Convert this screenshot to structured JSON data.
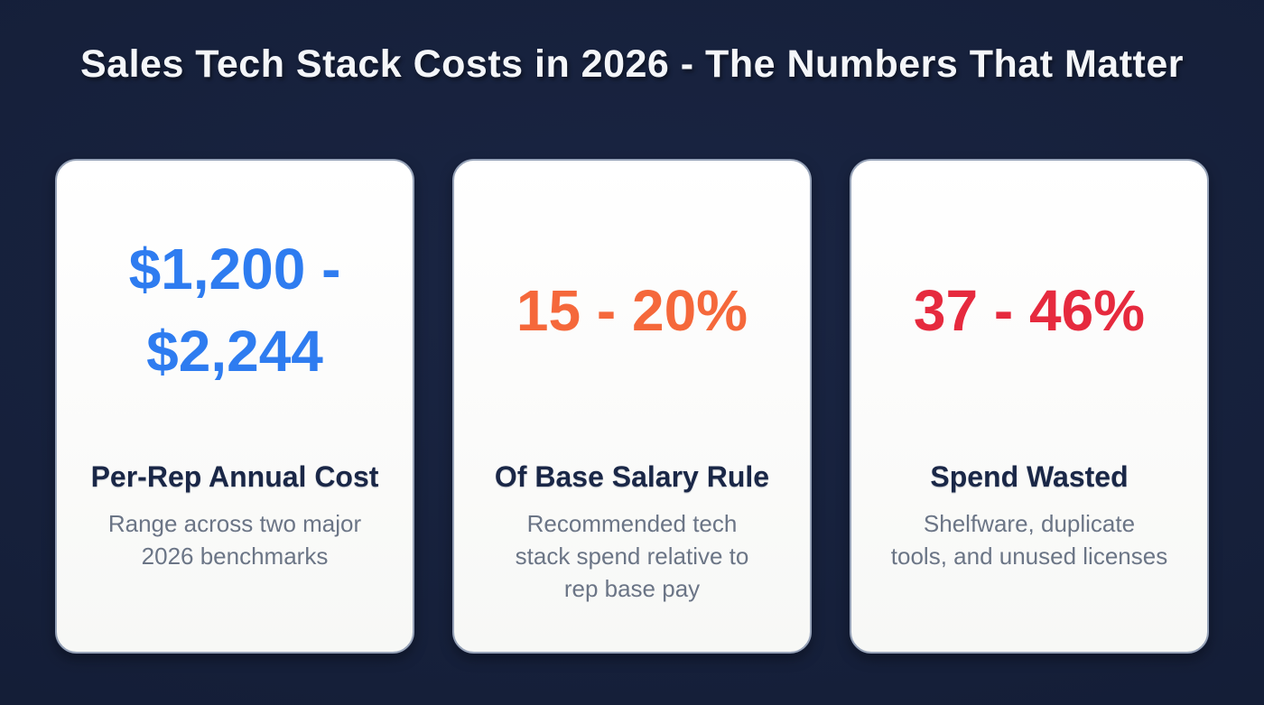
{
  "title": "Sales Tech Stack Costs in 2026 - The Numbers That Matter",
  "colors": {
    "background": "#151f39",
    "card_background": "#fbfbfa",
    "card_border": "#97a3b8",
    "title_text": "#f4f6f9",
    "heading_text": "#1a2747",
    "description_text": "#6b7586",
    "stat_blue": "#2e7cf0",
    "stat_orange": "#f5683b",
    "stat_red": "#e62a3e"
  },
  "cards": [
    {
      "value_lines": [
        "$1,200 -",
        "$2,244"
      ],
      "accent_color": "#2e7cf0",
      "heading": "Per-Rep Annual Cost",
      "description_lines": [
        "Range across two major",
        "2026 benchmarks"
      ]
    },
    {
      "value_lines": [
        "15 - 20%"
      ],
      "accent_color": "#f5683b",
      "heading": "Of Base Salary Rule",
      "description_lines": [
        "Recommended tech",
        "stack spend relative to",
        "rep base pay"
      ]
    },
    {
      "value_lines": [
        "37 - 46%"
      ],
      "accent_color": "#e62a3e",
      "heading": "Spend Wasted",
      "description_lines": [
        "Shelfware, duplicate",
        "tools, and unused licenses"
      ]
    }
  ],
  "chart_data": {
    "type": "table",
    "title": "Sales Tech Stack Costs in 2026 - The Numbers That Matter",
    "stats": [
      {
        "label": "Per-Rep Annual Cost",
        "value_display": "$1,200 - $2,244",
        "value_min": 1200,
        "value_max": 2244,
        "unit": "USD per rep per year",
        "note": "Range across two major 2026 benchmarks",
        "color": "#2e7cf0"
      },
      {
        "label": "Of Base Salary Rule",
        "value_display": "15 - 20%",
        "value_min": 15,
        "value_max": 20,
        "unit": "percent of base salary",
        "note": "Recommended tech stack spend relative to rep base pay",
        "color": "#f5683b"
      },
      {
        "label": "Spend Wasted",
        "value_display": "37 - 46%",
        "value_min": 37,
        "value_max": 46,
        "unit": "percent of spend",
        "note": "Shelfware, duplicate tools, and unused licenses",
        "color": "#e62a3e"
      }
    ]
  }
}
